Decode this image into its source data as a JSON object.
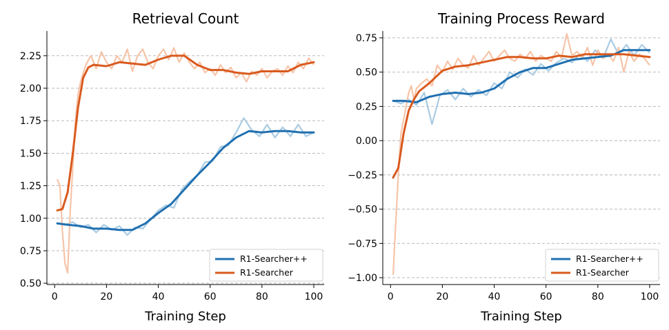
{
  "colors": {
    "plus": "#1f6fb0",
    "plus_light": "#a9cbe3",
    "base": "#d95a1e",
    "base_light": "#f6c4a8",
    "grid": "#b0b0b0"
  },
  "chart_data": [
    {
      "type": "line",
      "title": "Retrieval Count",
      "xlabel": "Training Step",
      "ylabel": "",
      "xlim": [
        -3,
        104
      ],
      "ylim": [
        0.49,
        2.44
      ],
      "xticks": [
        0,
        20,
        40,
        60,
        80,
        100
      ],
      "yticks": [
        0.5,
        0.75,
        1.0,
        1.25,
        1.5,
        1.75,
        2.0,
        2.25
      ],
      "ytick_labels": [
        "0.50",
        "0.75",
        "1.00",
        "1.25",
        "1.50",
        "1.75",
        "2.00",
        "2.25"
      ],
      "grid": "horizontal dashed",
      "legend_position": "lower-right",
      "series": [
        {
          "name": "R1-Searcher++",
          "smoothed": {
            "x": [
              1,
              5,
              10,
              15,
              20,
              25,
              30,
              35,
              40,
              45,
              50,
              55,
              60,
              65,
              70,
              75,
              80,
              85,
              90,
              95,
              100
            ],
            "y": [
              0.96,
              0.95,
              0.94,
              0.92,
              0.92,
              0.91,
              0.91,
              0.96,
              1.04,
              1.11,
              1.22,
              1.33,
              1.43,
              1.54,
              1.62,
              1.67,
              1.66,
              1.67,
              1.67,
              1.66,
              1.66
            ]
          },
          "raw": {
            "x": [
              1,
              4,
              7,
              10,
              13,
              16,
              19,
              22,
              25,
              28,
              31,
              34,
              37,
              40,
              43,
              46,
              49,
              52,
              55,
              58,
              61,
              64,
              67,
              70,
              73,
              76,
              79,
              82,
              85,
              88,
              91,
              94,
              97,
              100
            ],
            "y": [
              0.96,
              0.95,
              0.97,
              0.93,
              0.95,
              0.89,
              0.95,
              0.91,
              0.94,
              0.87,
              0.93,
              0.92,
              0.99,
              1.06,
              1.1,
              1.08,
              1.22,
              1.28,
              1.33,
              1.43,
              1.44,
              1.55,
              1.56,
              1.66,
              1.77,
              1.68,
              1.63,
              1.72,
              1.62,
              1.7,
              1.63,
              1.72,
              1.63,
              1.66
            ]
          }
        },
        {
          "name": "R1-Searcher",
          "smoothed": {
            "x": [
              1,
              3,
              5,
              7,
              9,
              11,
              13,
              15,
              20,
              25,
              30,
              35,
              40,
              45,
              50,
              55,
              60,
              65,
              70,
              75,
              80,
              85,
              90,
              95,
              100
            ],
            "y": [
              1.06,
              1.07,
              1.2,
              1.5,
              1.85,
              2.08,
              2.16,
              2.18,
              2.17,
              2.2,
              2.19,
              2.18,
              2.22,
              2.25,
              2.25,
              2.18,
              2.14,
              2.14,
              2.12,
              2.11,
              2.13,
              2.13,
              2.13,
              2.18,
              2.2
            ]
          },
          "raw": {
            "x": [
              1,
              2,
              3,
              4,
              5,
              6,
              7,
              8,
              9,
              10,
              12,
              14,
              16,
              18,
              20,
              22,
              24,
              26,
              28,
              30,
              32,
              34,
              36,
              38,
              40,
              42,
              44,
              46,
              48,
              50,
              52,
              54,
              56,
              58,
              60,
              62,
              64,
              66,
              68,
              70,
              72,
              74,
              76,
              78,
              80,
              82,
              84,
              86,
              88,
              90,
              92,
              94,
              96,
              98,
              100
            ],
            "y": [
              1.3,
              1.25,
              0.9,
              0.65,
              0.58,
              1.05,
              1.4,
              1.75,
              1.95,
              2.05,
              2.18,
              2.25,
              2.15,
              2.28,
              2.2,
              2.15,
              2.25,
              2.2,
              2.3,
              2.13,
              2.25,
              2.3,
              2.2,
              2.15,
              2.25,
              2.3,
              2.22,
              2.31,
              2.2,
              2.27,
              2.2,
              2.15,
              2.2,
              2.12,
              2.15,
              2.1,
              2.18,
              2.12,
              2.16,
              2.08,
              2.12,
              2.05,
              2.13,
              2.1,
              2.15,
              2.08,
              2.13,
              2.15,
              2.1,
              2.17,
              2.12,
              2.2,
              2.15,
              2.23,
              2.18
            ]
          }
        }
      ]
    },
    {
      "type": "line",
      "title": "Training Process Reward",
      "xlabel": "Training Step",
      "ylabel": "",
      "xlim": [
        -3,
        104
      ],
      "ylim": [
        -1.05,
        0.8
      ],
      "xticks": [
        0,
        20,
        40,
        60,
        80,
        100
      ],
      "yticks": [
        -1.0,
        -0.75,
        -0.5,
        -0.25,
        0.0,
        0.25,
        0.5,
        0.75
      ],
      "ytick_labels": [
        "−1.00",
        "−0.75",
        "−0.50",
        "−0.25",
        "0.00",
        "0.25",
        "0.50",
        "0.75"
      ],
      "grid": "horizontal dashed",
      "legend_position": "lower-right",
      "series": [
        {
          "name": "R1-Searcher++",
          "smoothed": {
            "x": [
              1,
              5,
              10,
              15,
              20,
              25,
              30,
              35,
              40,
              45,
              50,
              55,
              60,
              65,
              70,
              75,
              80,
              85,
              90,
              95,
              100
            ],
            "y": [
              0.29,
              0.29,
              0.28,
              0.32,
              0.34,
              0.35,
              0.34,
              0.35,
              0.38,
              0.45,
              0.5,
              0.53,
              0.53,
              0.56,
              0.59,
              0.6,
              0.61,
              0.62,
              0.66,
              0.66,
              0.66
            ]
          },
          "raw": {
            "x": [
              1,
              4,
              7,
              10,
              13,
              16,
              19,
              22,
              25,
              28,
              31,
              34,
              37,
              40,
              43,
              46,
              49,
              52,
              55,
              58,
              61,
              64,
              67,
              70,
              73,
              76,
              79,
              82,
              85,
              88,
              91,
              94,
              97,
              100
            ],
            "y": [
              0.29,
              0.27,
              0.3,
              0.26,
              0.35,
              0.12,
              0.33,
              0.37,
              0.3,
              0.38,
              0.32,
              0.37,
              0.33,
              0.42,
              0.38,
              0.5,
              0.46,
              0.52,
              0.48,
              0.56,
              0.51,
              0.57,
              0.6,
              0.57,
              0.63,
              0.58,
              0.66,
              0.6,
              0.74,
              0.63,
              0.7,
              0.62,
              0.7,
              0.64
            ]
          }
        },
        {
          "name": "R1-Searcher",
          "smoothed": {
            "x": [
              1,
              3,
              5,
              7,
              9,
              11,
              13,
              15,
              20,
              25,
              30,
              35,
              40,
              45,
              50,
              55,
              60,
              65,
              70,
              75,
              80,
              85,
              90,
              95,
              100
            ],
            "y": [
              -0.27,
              -0.2,
              0.05,
              0.22,
              0.3,
              0.36,
              0.39,
              0.42,
              0.51,
              0.54,
              0.55,
              0.57,
              0.59,
              0.61,
              0.61,
              0.6,
              0.6,
              0.62,
              0.61,
              0.63,
              0.63,
              0.63,
              0.63,
              0.62,
              0.61
            ]
          },
          "raw": {
            "x": [
              1,
              2,
              3,
              4,
              5,
              6,
              7,
              8,
              9,
              10,
              12,
              14,
              16,
              18,
              20,
              22,
              24,
              26,
              28,
              30,
              32,
              34,
              36,
              38,
              40,
              42,
              44,
              46,
              48,
              50,
              52,
              54,
              56,
              58,
              60,
              62,
              64,
              66,
              68,
              70,
              72,
              74,
              76,
              78,
              80,
              82,
              84,
              86,
              88,
              90,
              92,
              94,
              96,
              98,
              100
            ],
            "y": [
              -0.98,
              -0.6,
              -0.25,
              0.05,
              0.15,
              0.25,
              0.35,
              0.4,
              0.3,
              0.38,
              0.42,
              0.45,
              0.4,
              0.55,
              0.5,
              0.58,
              0.52,
              0.6,
              0.55,
              0.53,
              0.62,
              0.55,
              0.6,
              0.65,
              0.58,
              0.62,
              0.66,
              0.6,
              0.58,
              0.63,
              0.6,
              0.65,
              0.58,
              0.62,
              0.6,
              0.58,
              0.65,
              0.6,
              0.78,
              0.62,
              0.65,
              0.6,
              0.68,
              0.55,
              0.66,
              0.6,
              0.63,
              0.58,
              0.68,
              0.5,
              0.65,
              0.58,
              0.63,
              0.6,
              0.55
            ]
          }
        }
      ]
    }
  ]
}
